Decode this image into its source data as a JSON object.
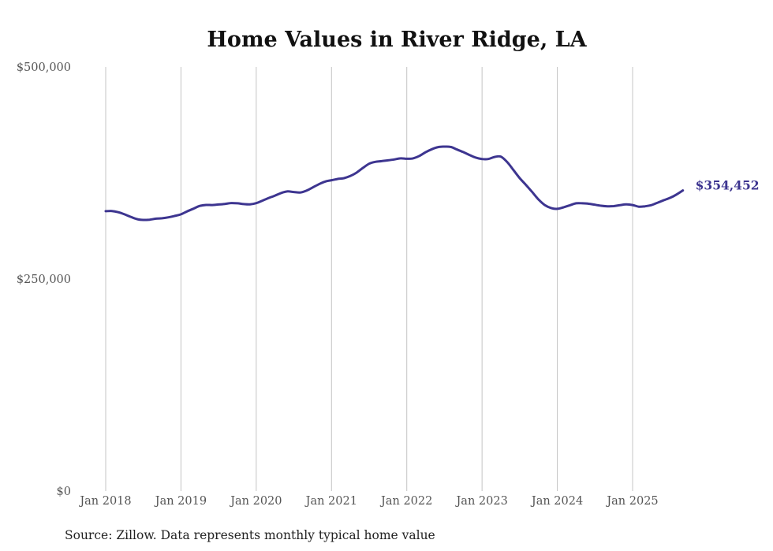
{
  "chart_data": {
    "type": "line",
    "title": "Home Values in River Ridge, LA",
    "xlabel": "",
    "ylabel": "",
    "source": "Source: Zillow. Data represents monthly typical home value",
    "ylim": [
      0,
      500000
    ],
    "yticks": [
      {
        "value": 500000,
        "label": "$500,000"
      },
      {
        "value": 250000,
        "label": "$250,000"
      },
      {
        "value": 0,
        "label": "$0"
      }
    ],
    "xticks": [
      {
        "value": 2018.0,
        "label": "Jan 2018"
      },
      {
        "value": 2019.0,
        "label": "Jan 2019"
      },
      {
        "value": 2020.0,
        "label": "Jan 2020"
      },
      {
        "value": 2021.0,
        "label": "Jan 2021"
      },
      {
        "value": 2022.0,
        "label": "Jan 2022"
      },
      {
        "value": 2023.0,
        "label": "Jan 2023"
      },
      {
        "value": 2024.0,
        "label": "Jan 2024"
      },
      {
        "value": 2025.0,
        "label": "Jan 2025"
      }
    ],
    "grid": "vertical",
    "line_color": "#3d3590",
    "end_label": "$354,452",
    "series": [
      {
        "name": "Typical home value",
        "x": [
          2018.0,
          2018.083,
          2018.167,
          2018.25,
          2018.333,
          2018.417,
          2018.5,
          2018.583,
          2018.667,
          2018.75,
          2018.833,
          2018.917,
          2019.0,
          2019.083,
          2019.167,
          2019.25,
          2019.333,
          2019.417,
          2019.5,
          2019.583,
          2019.667,
          2019.75,
          2019.833,
          2019.917,
          2020.0,
          2020.083,
          2020.167,
          2020.25,
          2020.333,
          2020.417,
          2020.5,
          2020.583,
          2020.667,
          2020.75,
          2020.833,
          2020.917,
          2021.0,
          2021.083,
          2021.167,
          2021.25,
          2021.333,
          2021.417,
          2021.5,
          2021.583,
          2021.667,
          2021.75,
          2021.833,
          2021.917,
          2022.0,
          2022.083,
          2022.167,
          2022.25,
          2022.333,
          2022.417,
          2022.5,
          2022.583,
          2022.667,
          2022.75,
          2022.833,
          2022.917,
          2023.0,
          2023.083,
          2023.167,
          2023.25,
          2023.333,
          2023.417,
          2023.5,
          2023.583,
          2023.667,
          2023.75,
          2023.833,
          2023.917,
          2024.0,
          2024.083,
          2024.167,
          2024.25,
          2024.333,
          2024.417,
          2024.5,
          2024.583,
          2024.667,
          2024.75,
          2024.833,
          2024.917,
          2025.0,
          2025.083,
          2025.167,
          2025.25,
          2025.333,
          2025.417,
          2025.5,
          2025.583,
          2025.667
        ],
        "values": [
          330000,
          330200,
          328800,
          326300,
          323300,
          320600,
          319700,
          320000,
          321200,
          321700,
          322800,
          324400,
          326300,
          329800,
          333000,
          336200,
          337400,
          337300,
          337900,
          338600,
          339600,
          339300,
          338400,
          338100,
          339500,
          342500,
          345600,
          348400,
          351500,
          353300,
          352600,
          352000,
          354200,
          358000,
          361800,
          365000,
          366500,
          368000,
          369000,
          371500,
          375500,
          381000,
          386000,
          388200,
          389000,
          390000,
          391000,
          392300,
          391800,
          392300,
          395200,
          399500,
          403100,
          405600,
          406100,
          405800,
          402700,
          399700,
          396300,
          393200,
          391500,
          391500,
          394000,
          394300,
          388000,
          378500,
          369000,
          361000,
          352500,
          343800,
          337300,
          333700,
          332800,
          334600,
          337000,
          339300,
          339300,
          338800,
          337600,
          336400,
          335800,
          336000,
          337100,
          338000,
          337300,
          335300,
          335800,
          337200,
          340100,
          343000,
          345800,
          349600,
          354452
        ]
      }
    ]
  }
}
